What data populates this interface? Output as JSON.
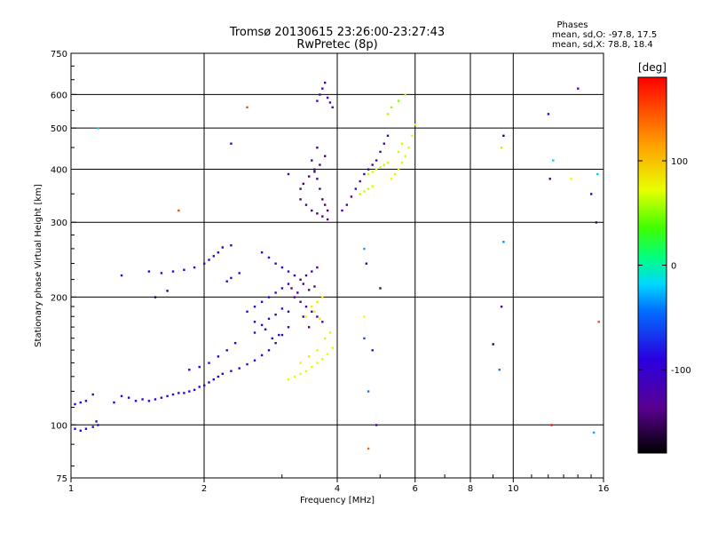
{
  "header": {
    "title_line1": "Tromsø 20130615 23:26:00-23:27:43",
    "title_line2": "RwPretec (8p)",
    "phases_title": "Phases",
    "phases_o": "mean, sd,O: -97.8, 17.5",
    "phases_x": "mean, sd,X:  78.8, 18.4"
  },
  "chart_data": {
    "type": "scatter",
    "xlabel": "Frequency [MHz]",
    "ylabel": "Stationary phase Virtual Height [km]",
    "xscale": "log",
    "yscale": "log",
    "xlim": [
      1,
      16
    ],
    "ylim": [
      75,
      750
    ],
    "xticks": [
      1,
      2,
      4,
      6,
      8,
      10,
      16
    ],
    "xtick_labels": [
      "1",
      "2",
      "4",
      "6",
      "8",
      "10",
      "16"
    ],
    "yticks": [
      75,
      100,
      200,
      300,
      400,
      500,
      600,
      750
    ],
    "ytick_labels": [
      "75",
      "100",
      "200",
      "300",
      "400",
      "500",
      "600",
      "750"
    ],
    "grid": true,
    "colorbar": {
      "label": "[deg]",
      "range": [
        -180,
        180
      ],
      "ticks": [
        -100,
        0,
        100
      ],
      "tick_labels": [
        "-100",
        "0",
        "100"
      ]
    },
    "series": [
      {
        "points": [
          [
            1.02,
            112,
            -95
          ],
          [
            1.05,
            113,
            -95
          ],
          [
            1.08,
            114,
            -98
          ],
          [
            1.12,
            118,
            -98
          ],
          [
            1.02,
            98,
            -95
          ],
          [
            1.05,
            97,
            -95
          ],
          [
            1.08,
            98,
            -92
          ],
          [
            1.12,
            99,
            -95
          ],
          [
            1.15,
            100,
            -98
          ],
          [
            1.14,
            102,
            -95
          ],
          [
            1.25,
            113,
            -95
          ],
          [
            1.3,
            117,
            -98
          ],
          [
            1.35,
            116,
            -95
          ],
          [
            1.4,
            114,
            -95
          ],
          [
            1.45,
            115,
            -98
          ],
          [
            1.5,
            114,
            -95
          ],
          [
            1.55,
            115,
            -95
          ],
          [
            1.6,
            116,
            -98
          ],
          [
            1.65,
            117,
            -95
          ],
          [
            1.7,
            118,
            -95
          ],
          [
            1.75,
            119,
            -98
          ],
          [
            1.8,
            119,
            -95
          ],
          [
            1.85,
            120,
            -95
          ],
          [
            1.9,
            121,
            -98
          ],
          [
            1.95,
            123,
            -95
          ],
          [
            2.0,
            124,
            -95
          ],
          [
            2.05,
            126,
            -98
          ],
          [
            2.1,
            128,
            -95
          ],
          [
            2.15,
            130,
            -95
          ],
          [
            2.2,
            132,
            -98
          ],
          [
            2.3,
            134,
            -95
          ],
          [
            2.4,
            136,
            -95
          ],
          [
            2.5,
            139,
            -98
          ],
          [
            2.6,
            142,
            -95
          ],
          [
            2.7,
            146,
            -95
          ],
          [
            2.8,
            150,
            -98
          ],
          [
            2.9,
            156,
            -95
          ],
          [
            3.0,
            163,
            -95
          ],
          [
            3.1,
            170,
            -98
          ],
          [
            1.85,
            135,
            -95
          ],
          [
            1.95,
            137,
            -95
          ],
          [
            2.05,
            140,
            -98
          ],
          [
            2.15,
            145,
            -95
          ],
          [
            2.25,
            150,
            -95
          ],
          [
            2.35,
            156,
            -98
          ],
          [
            1.3,
            225,
            -95
          ],
          [
            1.5,
            230,
            -95
          ],
          [
            1.6,
            228,
            -98
          ],
          [
            1.7,
            230,
            -95
          ],
          [
            1.8,
            232,
            -95
          ],
          [
            1.9,
            235,
            -98
          ],
          [
            2.0,
            240,
            -95
          ],
          [
            2.05,
            245,
            -95
          ],
          [
            2.1,
            250,
            -98
          ],
          [
            2.15,
            255,
            -95
          ],
          [
            2.2,
            262,
            -95
          ],
          [
            2.3,
            265,
            -98
          ],
          [
            2.25,
            218,
            -95
          ],
          [
            2.3,
            222,
            -95
          ],
          [
            2.4,
            228,
            -98
          ],
          [
            2.5,
            185,
            -100
          ],
          [
            2.6,
            190,
            -105
          ],
          [
            2.7,
            195,
            -105
          ],
          [
            2.8,
            200,
            -100
          ],
          [
            2.9,
            205,
            -105
          ],
          [
            3.0,
            210,
            -105
          ],
          [
            3.1,
            215,
            -100
          ],
          [
            2.6,
            175,
            -100
          ],
          [
            2.7,
            172,
            -105
          ],
          [
            2.8,
            178,
            -105
          ],
          [
            2.9,
            182,
            -100
          ],
          [
            3.0,
            188,
            -105
          ],
          [
            2.6,
            165,
            -100
          ],
          [
            2.75,
            168,
            -105
          ],
          [
            2.85,
            160,
            -105
          ],
          [
            2.95,
            163,
            -100
          ],
          [
            3.1,
            185,
            -110
          ],
          [
            2.7,
            255,
            -100
          ],
          [
            2.8,
            248,
            -105
          ],
          [
            2.9,
            240,
            -105
          ],
          [
            3.0,
            235,
            -100
          ],
          [
            3.1,
            230,
            -105
          ],
          [
            3.2,
            225,
            -105
          ],
          [
            3.2,
            200,
            -140
          ],
          [
            3.3,
            195,
            -140
          ],
          [
            3.4,
            190,
            -135
          ],
          [
            3.5,
            185,
            -140
          ],
          [
            3.6,
            180,
            -140
          ],
          [
            3.7,
            175,
            -135
          ],
          [
            3.3,
            220,
            -140
          ],
          [
            3.4,
            225,
            -140
          ],
          [
            3.5,
            230,
            -135
          ],
          [
            3.6,
            235,
            -140
          ],
          [
            3.15,
            210,
            -138
          ],
          [
            3.25,
            205,
            -142
          ],
          [
            3.35,
            215,
            -138
          ],
          [
            3.45,
            208,
            -142
          ],
          [
            3.55,
            212,
            -138
          ],
          [
            3.35,
            180,
            -142
          ],
          [
            3.45,
            170,
            -140
          ],
          [
            3.1,
            128,
            70
          ],
          [
            3.2,
            130,
            72
          ],
          [
            3.3,
            132,
            70
          ],
          [
            3.4,
            134,
            72
          ],
          [
            3.5,
            137,
            70
          ],
          [
            3.6,
            140,
            72
          ],
          [
            3.7,
            143,
            70
          ],
          [
            3.8,
            147,
            72
          ],
          [
            3.9,
            152,
            70
          ],
          [
            3.4,
            180,
            78
          ],
          [
            3.5,
            190,
            80
          ],
          [
            3.6,
            195,
            78
          ],
          [
            3.7,
            200,
            80
          ],
          [
            3.55,
            185,
            78
          ],
          [
            3.65,
            178,
            80
          ],
          [
            3.3,
            140,
            75
          ],
          [
            3.45,
            145,
            78
          ],
          [
            3.6,
            150,
            75
          ],
          [
            3.75,
            160,
            78
          ],
          [
            3.85,
            165,
            75
          ],
          [
            3.5,
            420,
            -145
          ],
          [
            3.55,
            400,
            -145
          ],
          [
            3.6,
            380,
            -140
          ],
          [
            3.65,
            360,
            -145
          ],
          [
            3.7,
            340,
            -145
          ],
          [
            3.75,
            330,
            -140
          ],
          [
            3.8,
            320,
            -145
          ],
          [
            3.3,
            340,
            -142
          ],
          [
            3.4,
            330,
            -145
          ],
          [
            3.5,
            320,
            -142
          ],
          [
            3.6,
            315,
            -145
          ],
          [
            3.7,
            310,
            -142
          ],
          [
            3.8,
            305,
            -145
          ],
          [
            3.3,
            360,
            -142
          ],
          [
            3.35,
            370,
            -145
          ],
          [
            3.45,
            385,
            -142
          ],
          [
            3.55,
            395,
            -145
          ],
          [
            3.65,
            410,
            -142
          ],
          [
            3.75,
            430,
            -145
          ],
          [
            3.6,
            450,
            -142
          ],
          [
            3.6,
            580,
            -115
          ],
          [
            3.65,
            600,
            -118
          ],
          [
            3.7,
            620,
            -115
          ],
          [
            3.75,
            640,
            -118
          ],
          [
            3.8,
            590,
            -115
          ],
          [
            3.85,
            575,
            -118
          ],
          [
            3.9,
            560,
            -115
          ],
          [
            4.1,
            320,
            -120
          ],
          [
            4.2,
            330,
            -118
          ],
          [
            4.3,
            345,
            -120
          ],
          [
            4.4,
            360,
            -118
          ],
          [
            4.5,
            375,
            -120
          ],
          [
            4.6,
            390,
            -118
          ],
          [
            4.7,
            400,
            -120
          ],
          [
            4.8,
            410,
            -118
          ],
          [
            4.9,
            420,
            -120
          ],
          [
            5.0,
            440,
            -118
          ],
          [
            5.1,
            460,
            -120
          ],
          [
            5.2,
            480,
            -118
          ],
          [
            4.7,
            390,
            65
          ],
          [
            4.8,
            395,
            68
          ],
          [
            4.9,
            400,
            65
          ],
          [
            5.0,
            405,
            68
          ],
          [
            5.1,
            410,
            65
          ],
          [
            5.2,
            415,
            68
          ],
          [
            4.5,
            350,
            65
          ],
          [
            4.6,
            355,
            68
          ],
          [
            4.7,
            360,
            65
          ],
          [
            4.8,
            365,
            68
          ],
          [
            5.3,
            380,
            75
          ],
          [
            5.4,
            390,
            78
          ],
          [
            5.5,
            400,
            75
          ],
          [
            5.6,
            415,
            78
          ],
          [
            5.7,
            430,
            75
          ],
          [
            5.8,
            450,
            78
          ],
          [
            5.9,
            480,
            75
          ],
          [
            6.0,
            510,
            78
          ],
          [
            5.5,
            440,
            80
          ],
          [
            5.6,
            460,
            78
          ],
          [
            5.2,
            540,
            60
          ],
          [
            5.3,
            560,
            55
          ],
          [
            5.5,
            580,
            50
          ],
          [
            5.7,
            600,
            60
          ],
          [
            4.6,
            180,
            72
          ],
          [
            4.6,
            160,
            -60
          ],
          [
            4.7,
            120,
            -40
          ],
          [
            4.8,
            150,
            -125
          ],
          [
            4.9,
            100,
            -130
          ],
          [
            4.7,
            88,
            140
          ],
          [
            4.6,
            260,
            -30
          ],
          [
            4.65,
            240,
            -90
          ],
          [
            5.0,
            210,
            -150
          ],
          [
            9.0,
            155,
            -160
          ],
          [
            9.3,
            135,
            -40
          ],
          [
            9.4,
            190,
            -130
          ],
          [
            9.5,
            270,
            -35
          ],
          [
            9.5,
            480,
            -160
          ],
          [
            9.4,
            450,
            60
          ],
          [
            12.0,
            540,
            -90
          ],
          [
            12.1,
            380,
            -150
          ],
          [
            12.3,
            420,
            -20
          ],
          [
            12.2,
            100,
            170
          ],
          [
            13.5,
            380,
            70
          ],
          [
            14.0,
            620,
            -120
          ],
          [
            15.0,
            350,
            -90
          ],
          [
            15.5,
            390,
            -20
          ],
          [
            15.6,
            175,
            150
          ],
          [
            15.2,
            96,
            -30
          ],
          [
            15.4,
            300,
            -150
          ],
          [
            2.5,
            560,
            150
          ],
          [
            1.75,
            320,
            150
          ],
          [
            1.65,
            207,
            -155
          ],
          [
            1.55,
            200,
            -160
          ],
          [
            2.3,
            460,
            -100
          ],
          [
            3.1,
            390,
            -130
          ],
          [
            1.15,
            500,
            -20
          ]
        ]
      }
    ]
  }
}
